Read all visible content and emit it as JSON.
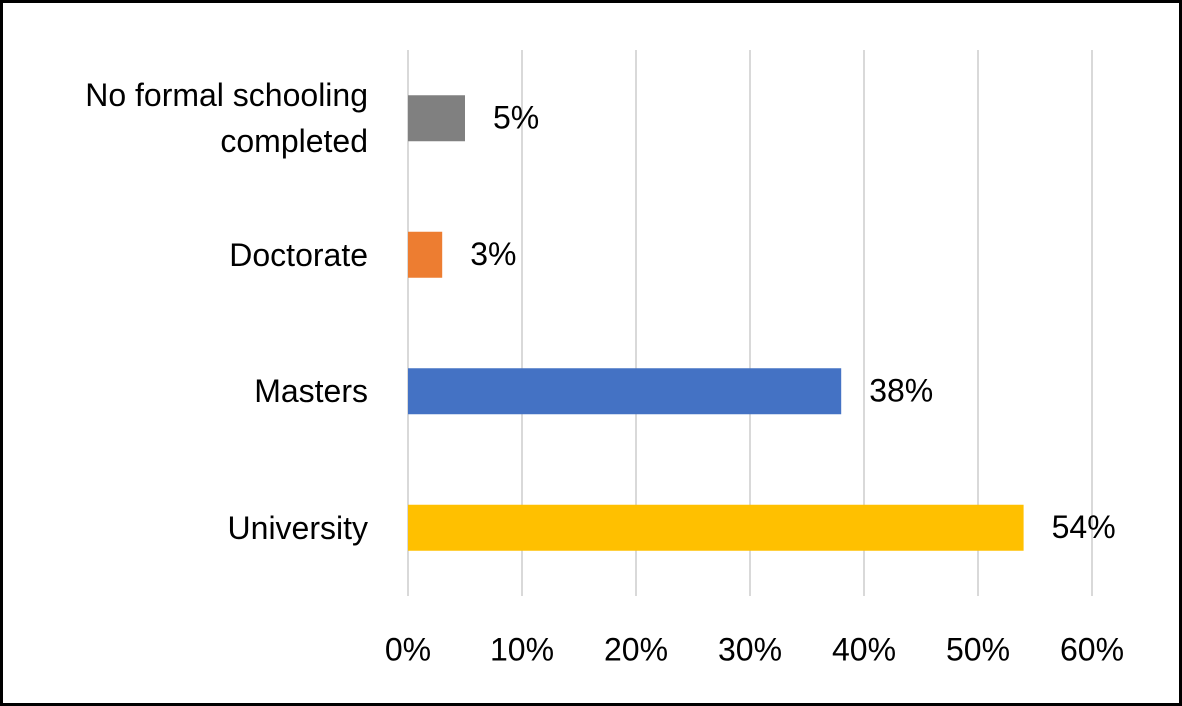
{
  "chart_data": {
    "type": "hbar",
    "categories": [
      "No formal schooling completed",
      "Doctorate",
      "Masters",
      "University"
    ],
    "values": [
      5,
      3,
      38,
      54
    ],
    "value_labels": [
      "5%",
      "3%",
      "38%",
      "54%"
    ],
    "colors": [
      "#808080",
      "#ed7d31",
      "#4472c4",
      "#ffc000"
    ],
    "xlim": [
      0,
      60
    ],
    "xticks": [
      {
        "value": 0,
        "label": "0%"
      },
      {
        "value": 10,
        "label": "10%"
      },
      {
        "value": 20,
        "label": "20%"
      },
      {
        "value": 30,
        "label": "30%"
      },
      {
        "value": 40,
        "label": "40%"
      },
      {
        "value": 50,
        "label": "50%"
      },
      {
        "value": 60,
        "label": "60%"
      }
    ],
    "grid": true
  }
}
